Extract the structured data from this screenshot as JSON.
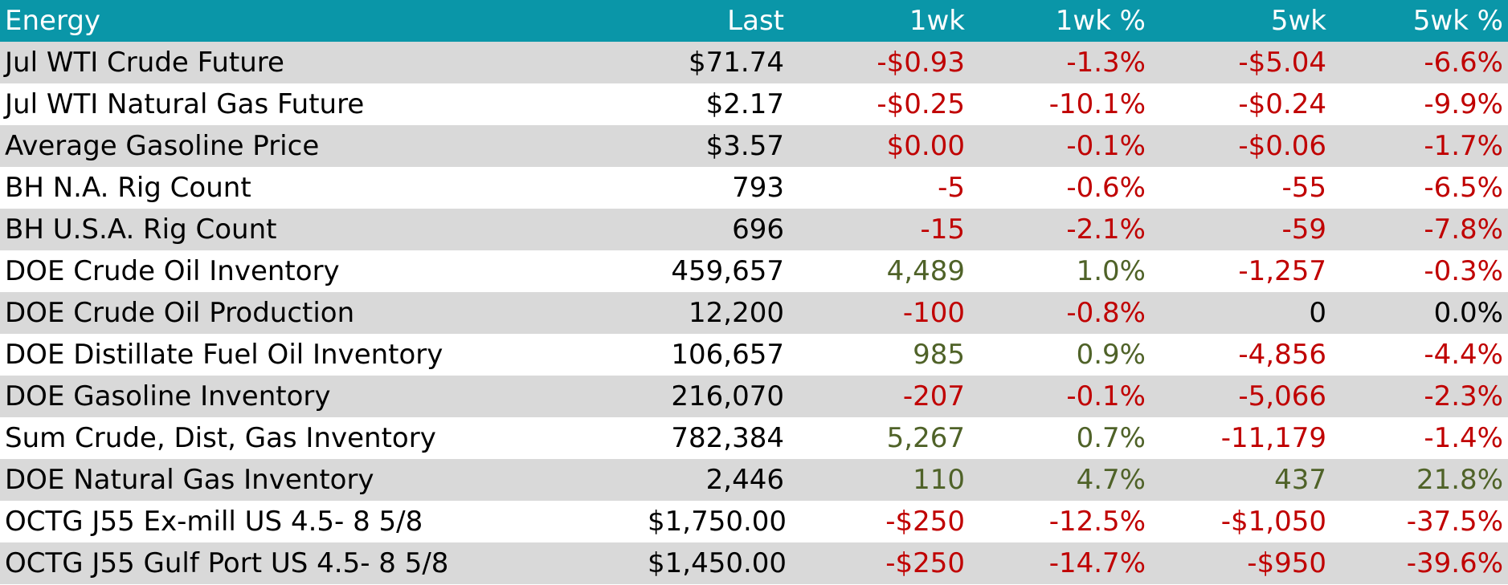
{
  "table": {
    "headers": [
      "Energy",
      "Last",
      "1wk",
      "1wk %",
      "5wk",
      "5wk %"
    ],
    "rows": [
      {
        "name": "Jul WTI Crude Future",
        "last": "$71.74",
        "wk1": "-$0.93",
        "wk1_pct": "-1.3%",
        "wk5": "-$5.04",
        "wk5_pct": "-6.6%"
      },
      {
        "name": "Jul WTI Natural Gas Future",
        "last": "$2.17",
        "wk1": "-$0.25",
        "wk1_pct": "-10.1%",
        "wk5": "-$0.24",
        "wk5_pct": "-9.9%"
      },
      {
        "name": "Average Gasoline Price",
        "last": "$3.57",
        "wk1": "$0.00",
        "wk1_pct": "-0.1%",
        "wk5": "-$0.06",
        "wk5_pct": "-1.7%"
      },
      {
        "name": "BH N.A. Rig Count",
        "last": "793",
        "wk1": "-5",
        "wk1_pct": "-0.6%",
        "wk5": "-55",
        "wk5_pct": "-6.5%"
      },
      {
        "name": "BH U.S.A. Rig Count",
        "last": "696",
        "wk1": "-15",
        "wk1_pct": "-2.1%",
        "wk5": "-59",
        "wk5_pct": "-7.8%"
      },
      {
        "name": "DOE Crude Oil Inventory",
        "last": "459,657",
        "wk1": "4,489",
        "wk1_pct": "1.0%",
        "wk5": "-1,257",
        "wk5_pct": "-0.3%"
      },
      {
        "name": "DOE Crude Oil Production",
        "last": "12,200",
        "wk1": "-100",
        "wk1_pct": "-0.8%",
        "wk5": "0",
        "wk5_pct": "0.0%"
      },
      {
        "name": "DOE Distillate Fuel Oil Inventory",
        "last": "106,657",
        "wk1": "985",
        "wk1_pct": "0.9%",
        "wk5": "-4,856",
        "wk5_pct": "-4.4%"
      },
      {
        "name": "DOE Gasoline Inventory",
        "last": "216,070",
        "wk1": "-207",
        "wk1_pct": "-0.1%",
        "wk5": "-5,066",
        "wk5_pct": "-2.3%"
      },
      {
        "name": "Sum Crude, Dist, Gas Inventory",
        "last": "782,384",
        "wk1": "5,267",
        "wk1_pct": "0.7%",
        "wk5": "-11,179",
        "wk5_pct": "-1.4%"
      },
      {
        "name": "DOE Natural Gas Inventory",
        "last": "2,446",
        "wk1": "110",
        "wk1_pct": "4.7%",
        "wk5": "437",
        "wk5_pct": "21.8%"
      },
      {
        "name": "OCTG J55 Ex-mill US 4.5- 8 5/8",
        "last": "$1,750.00",
        "wk1": "-$250",
        "wk1_pct": "-12.5%",
        "wk5": "-$1,050",
        "wk5_pct": "-37.5%"
      },
      {
        "name": "OCTG J55 Gulf Port US 4.5- 8 5/8",
        "last": "$1,450.00",
        "wk1": "-$250",
        "wk1_pct": "-14.7%",
        "wk5": "-$950",
        "wk5_pct": "-39.6%"
      }
    ]
  },
  "colors": {
    "header_bg": "#0a96a8",
    "header_text": "#ffffff",
    "negative": "#c00000",
    "positive": "#4f6228",
    "neutral": "#000000",
    "row_alt": "#d9d9d9",
    "row_base": "#ffffff"
  }
}
